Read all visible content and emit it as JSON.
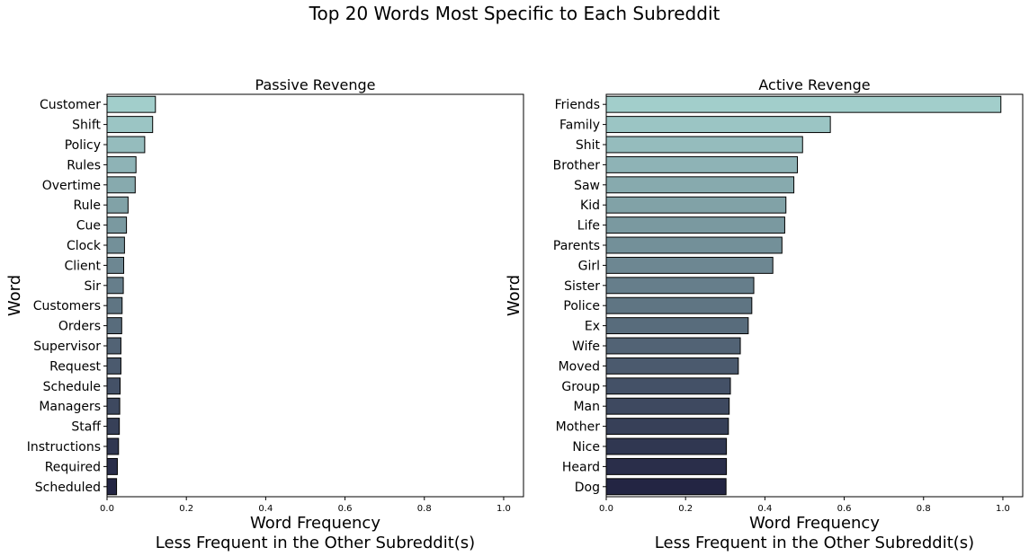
{
  "suptitle": "Top 20 Words Most Specific to Each Subreddit",
  "colors": {
    "bar_top": "#a2cecb",
    "bar_bottom": "#232543",
    "bar_stroke": "#000000",
    "axes_stroke": "#000000"
  },
  "chart_data": [
    {
      "type": "bar",
      "orientation": "horizontal",
      "title": "Passive Revenge",
      "ylabel": "Word",
      "xlabel": "Word Frequency\nLess Frequent in the Other Subreddit(s)",
      "xlim": [
        0,
        1.05
      ],
      "xticks": [
        "0.0",
        "0.2",
        "0.4",
        "0.6",
        "0.8",
        "1.0"
      ],
      "grid": false,
      "categories": [
        "Customer",
        "Shift",
        "Policy",
        "Rules",
        "Overtime",
        "Rule",
        "Cue",
        "Clock",
        "Client",
        "Sir",
        "Customers",
        "Orders",
        "Supervisor",
        "Request",
        "Schedule",
        "Managers",
        "Staff",
        "Instructions",
        "Required",
        "Scheduled"
      ],
      "values": [
        0.122,
        0.115,
        0.095,
        0.073,
        0.071,
        0.053,
        0.049,
        0.044,
        0.042,
        0.041,
        0.038,
        0.037,
        0.035,
        0.035,
        0.033,
        0.032,
        0.031,
        0.029,
        0.026,
        0.024
      ]
    },
    {
      "type": "bar",
      "orientation": "horizontal",
      "title": "Active Revenge",
      "ylabel": "Word",
      "xlabel": "Word Frequency\nLess Frequent in the Other Subreddit(s)",
      "xlim": [
        0,
        1.05
      ],
      "xticks": [
        "0.0",
        "0.2",
        "0.4",
        "0.6",
        "0.8",
        "1.0"
      ],
      "grid": false,
      "categories": [
        "Friends",
        "Family",
        "Shit",
        "Brother",
        "Saw",
        "Kid",
        "Life",
        "Parents",
        "Girl",
        "Sister",
        "Police",
        "Ex",
        "Wife",
        "Moved",
        "Group",
        "Man",
        "Mother",
        "Nice",
        "Heard",
        "Dog"
      ],
      "values": [
        0.995,
        0.565,
        0.495,
        0.482,
        0.473,
        0.453,
        0.45,
        0.443,
        0.42,
        0.372,
        0.367,
        0.358,
        0.338,
        0.333,
        0.313,
        0.31,
        0.308,
        0.303,
        0.303,
        0.302
      ]
    }
  ]
}
